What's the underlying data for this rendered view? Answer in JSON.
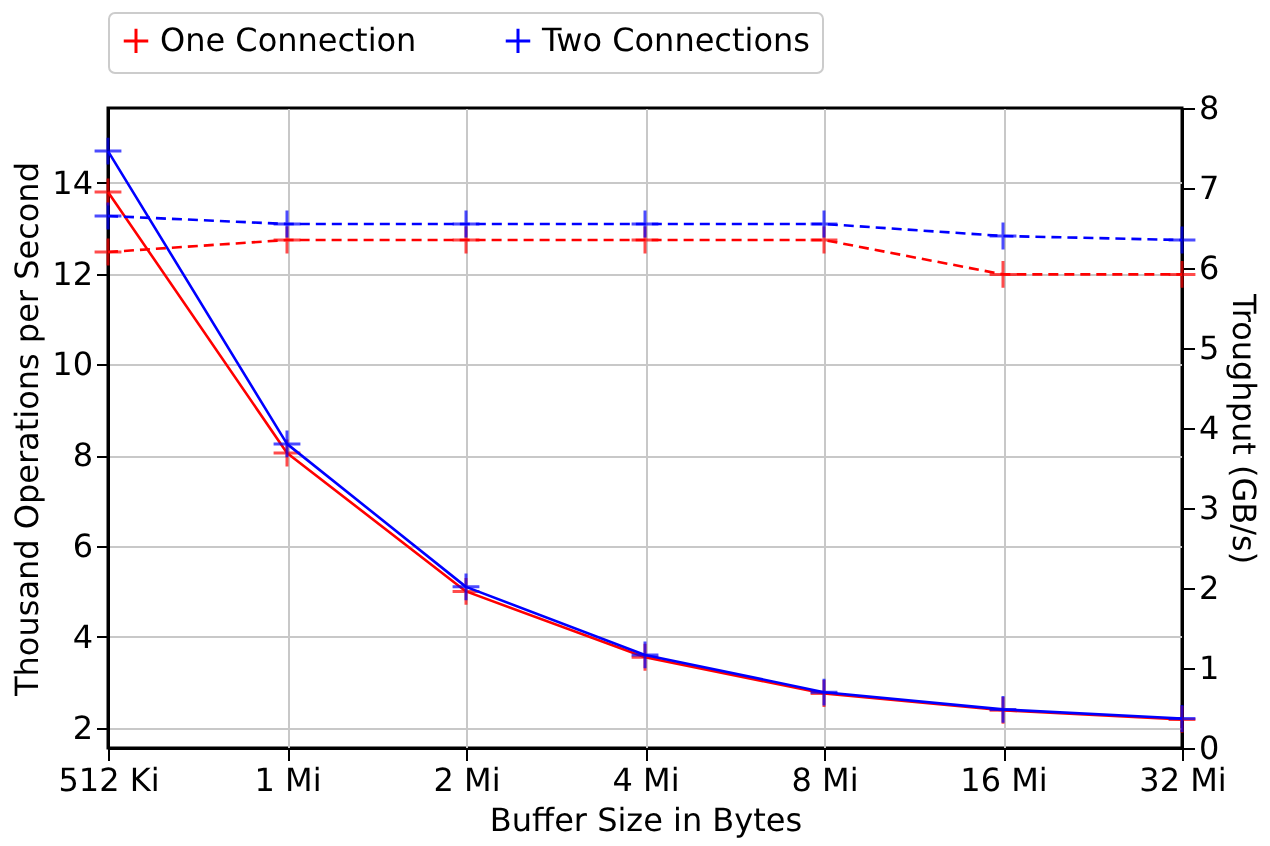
{
  "chart_data": {
    "type": "line",
    "categories": [
      "512 Ki",
      "1 Mi",
      "2 Mi",
      "4 Mi",
      "8 Mi",
      "16 Mi",
      "32 Mi"
    ],
    "xlabel": "Buffer Size in Bytes",
    "ylabel": "Thousand Operations per Second",
    "y2label": "Troughput (GB/s)",
    "ylim": [
      1.55,
      15.65
    ],
    "yticks": [
      2,
      4,
      6,
      8,
      10,
      12,
      14
    ],
    "y2lim": [
      0,
      8
    ],
    "y2ticks": [
      0,
      1,
      2,
      3,
      4,
      5,
      6,
      7,
      8
    ],
    "grid": true,
    "legend": "top",
    "marker": "cross",
    "series": [
      {
        "name": "One Connection",
        "color": "#ff0000",
        "line_style": "solid",
        "values": [
          13.8,
          8.05,
          5.0,
          3.55,
          2.75,
          2.38,
          2.18
        ]
      },
      {
        "name": "Two Connections",
        "color": "#0000ff",
        "line_style": "solid",
        "values": [
          14.7,
          8.25,
          5.1,
          3.6,
          2.78,
          2.4,
          2.2
        ]
      },
      {
        "color": "#ff0000",
        "axis": "y2",
        "line_style": "dashed",
        "values": [
          6.2,
          6.35,
          6.35,
          6.35,
          6.35,
          5.92,
          5.92
        ]
      },
      {
        "color": "#0000ff",
        "axis": "y2",
        "line_style": "dashed",
        "values": [
          6.65,
          6.55,
          6.55,
          6.55,
          6.55,
          6.4,
          6.35
        ]
      }
    ]
  }
}
